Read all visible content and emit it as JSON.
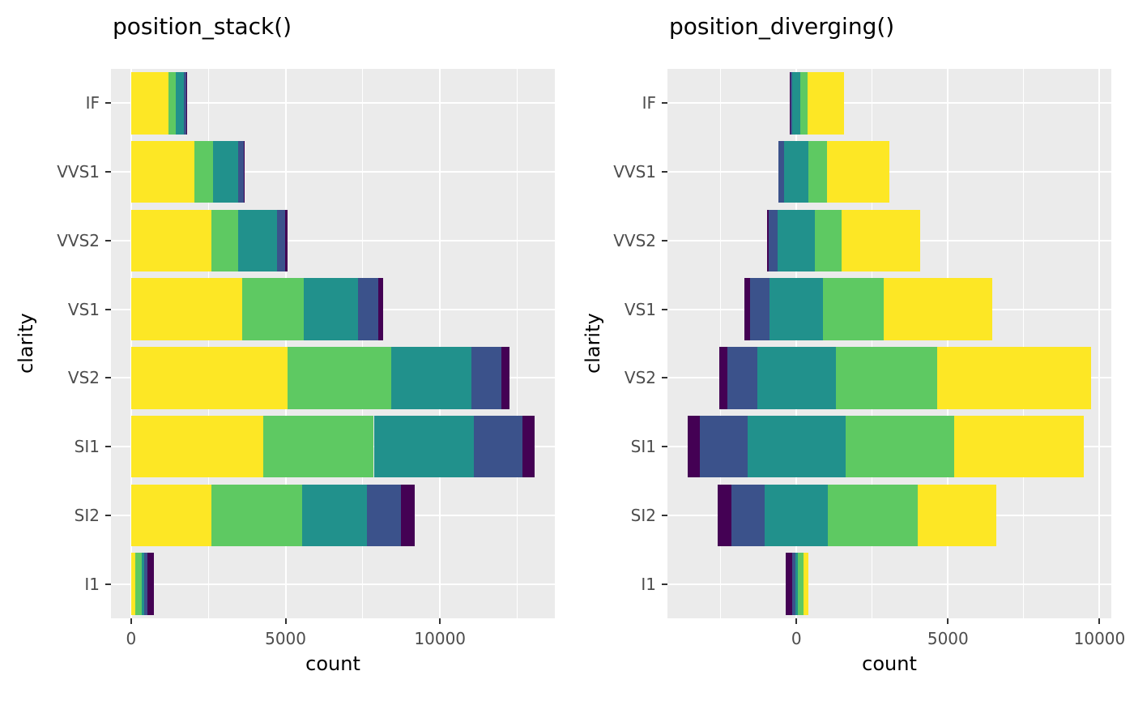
{
  "figure": {
    "background": "#FFFFFF",
    "panel_background": "#EBEBEB",
    "gridline_color": "#FFFFFF",
    "axis_text_color": "#4D4D4D",
    "tick_mark_color": "#333333"
  },
  "chart_data": {
    "type": "bar",
    "orientation": "horizontal",
    "grid": true,
    "legend": "none",
    "categories": [
      "IF",
      "VVS1",
      "VVS2",
      "VS1",
      "VS2",
      "SI1",
      "SI2",
      "I1"
    ],
    "series": [
      {
        "color_name": "yellow",
        "color": "#FDE725",
        "values": [
          1212,
          2047,
          2606,
          3589,
          5071,
          4282,
          2598,
          146
        ]
      },
      {
        "color_name": "green",
        "color": "#5EC962",
        "values": [
          230,
          616,
          870,
          1989,
          3357,
          3575,
          2949,
          205
        ]
      },
      {
        "color_name": "teal",
        "color": "#21918C",
        "values": [
          268,
          789,
          1235,
          1775,
          2591,
          3240,
          2100,
          84
        ]
      },
      {
        "color_name": "blue",
        "color": "#3B528B",
        "values": [
          71,
          186,
          286,
          648,
          978,
          1560,
          1081,
          96
        ]
      },
      {
        "color_name": "purple",
        "color": "#440154",
        "values": [
          9,
          17,
          69,
          170,
          261,
          408,
          466,
          210
        ]
      }
    ],
    "panels": [
      {
        "title": "position_stack()",
        "xlabel": "count",
        "ylabel": "clarity",
        "position": "stack",
        "stack_order": [
          "yellow",
          "green",
          "teal",
          "blue",
          "purple"
        ],
        "xlim": [
          -653,
          13718
        ],
        "x_tick_values": [
          0,
          5000,
          10000
        ],
        "x_tick_labels": [
          "0",
          "5000",
          "10000"
        ],
        "x_minor_gridlines": [
          2500,
          7500,
          12500
        ]
      },
      {
        "title": "position_diverging()",
        "xlabel": "count",
        "ylabel": "clarity",
        "position": "diverging",
        "stack_order": [
          "purple",
          "blue",
          "teal",
          "green",
          "yellow"
        ],
        "center_series": "teal",
        "xlim": [
          -4254,
          10389
        ],
        "x_tick_values": [
          0,
          5000,
          10000
        ],
        "x_tick_labels": [
          "0",
          "5000",
          "10000"
        ],
        "x_minor_gridlines": [
          -2500,
          2500,
          7500
        ]
      }
    ]
  }
}
